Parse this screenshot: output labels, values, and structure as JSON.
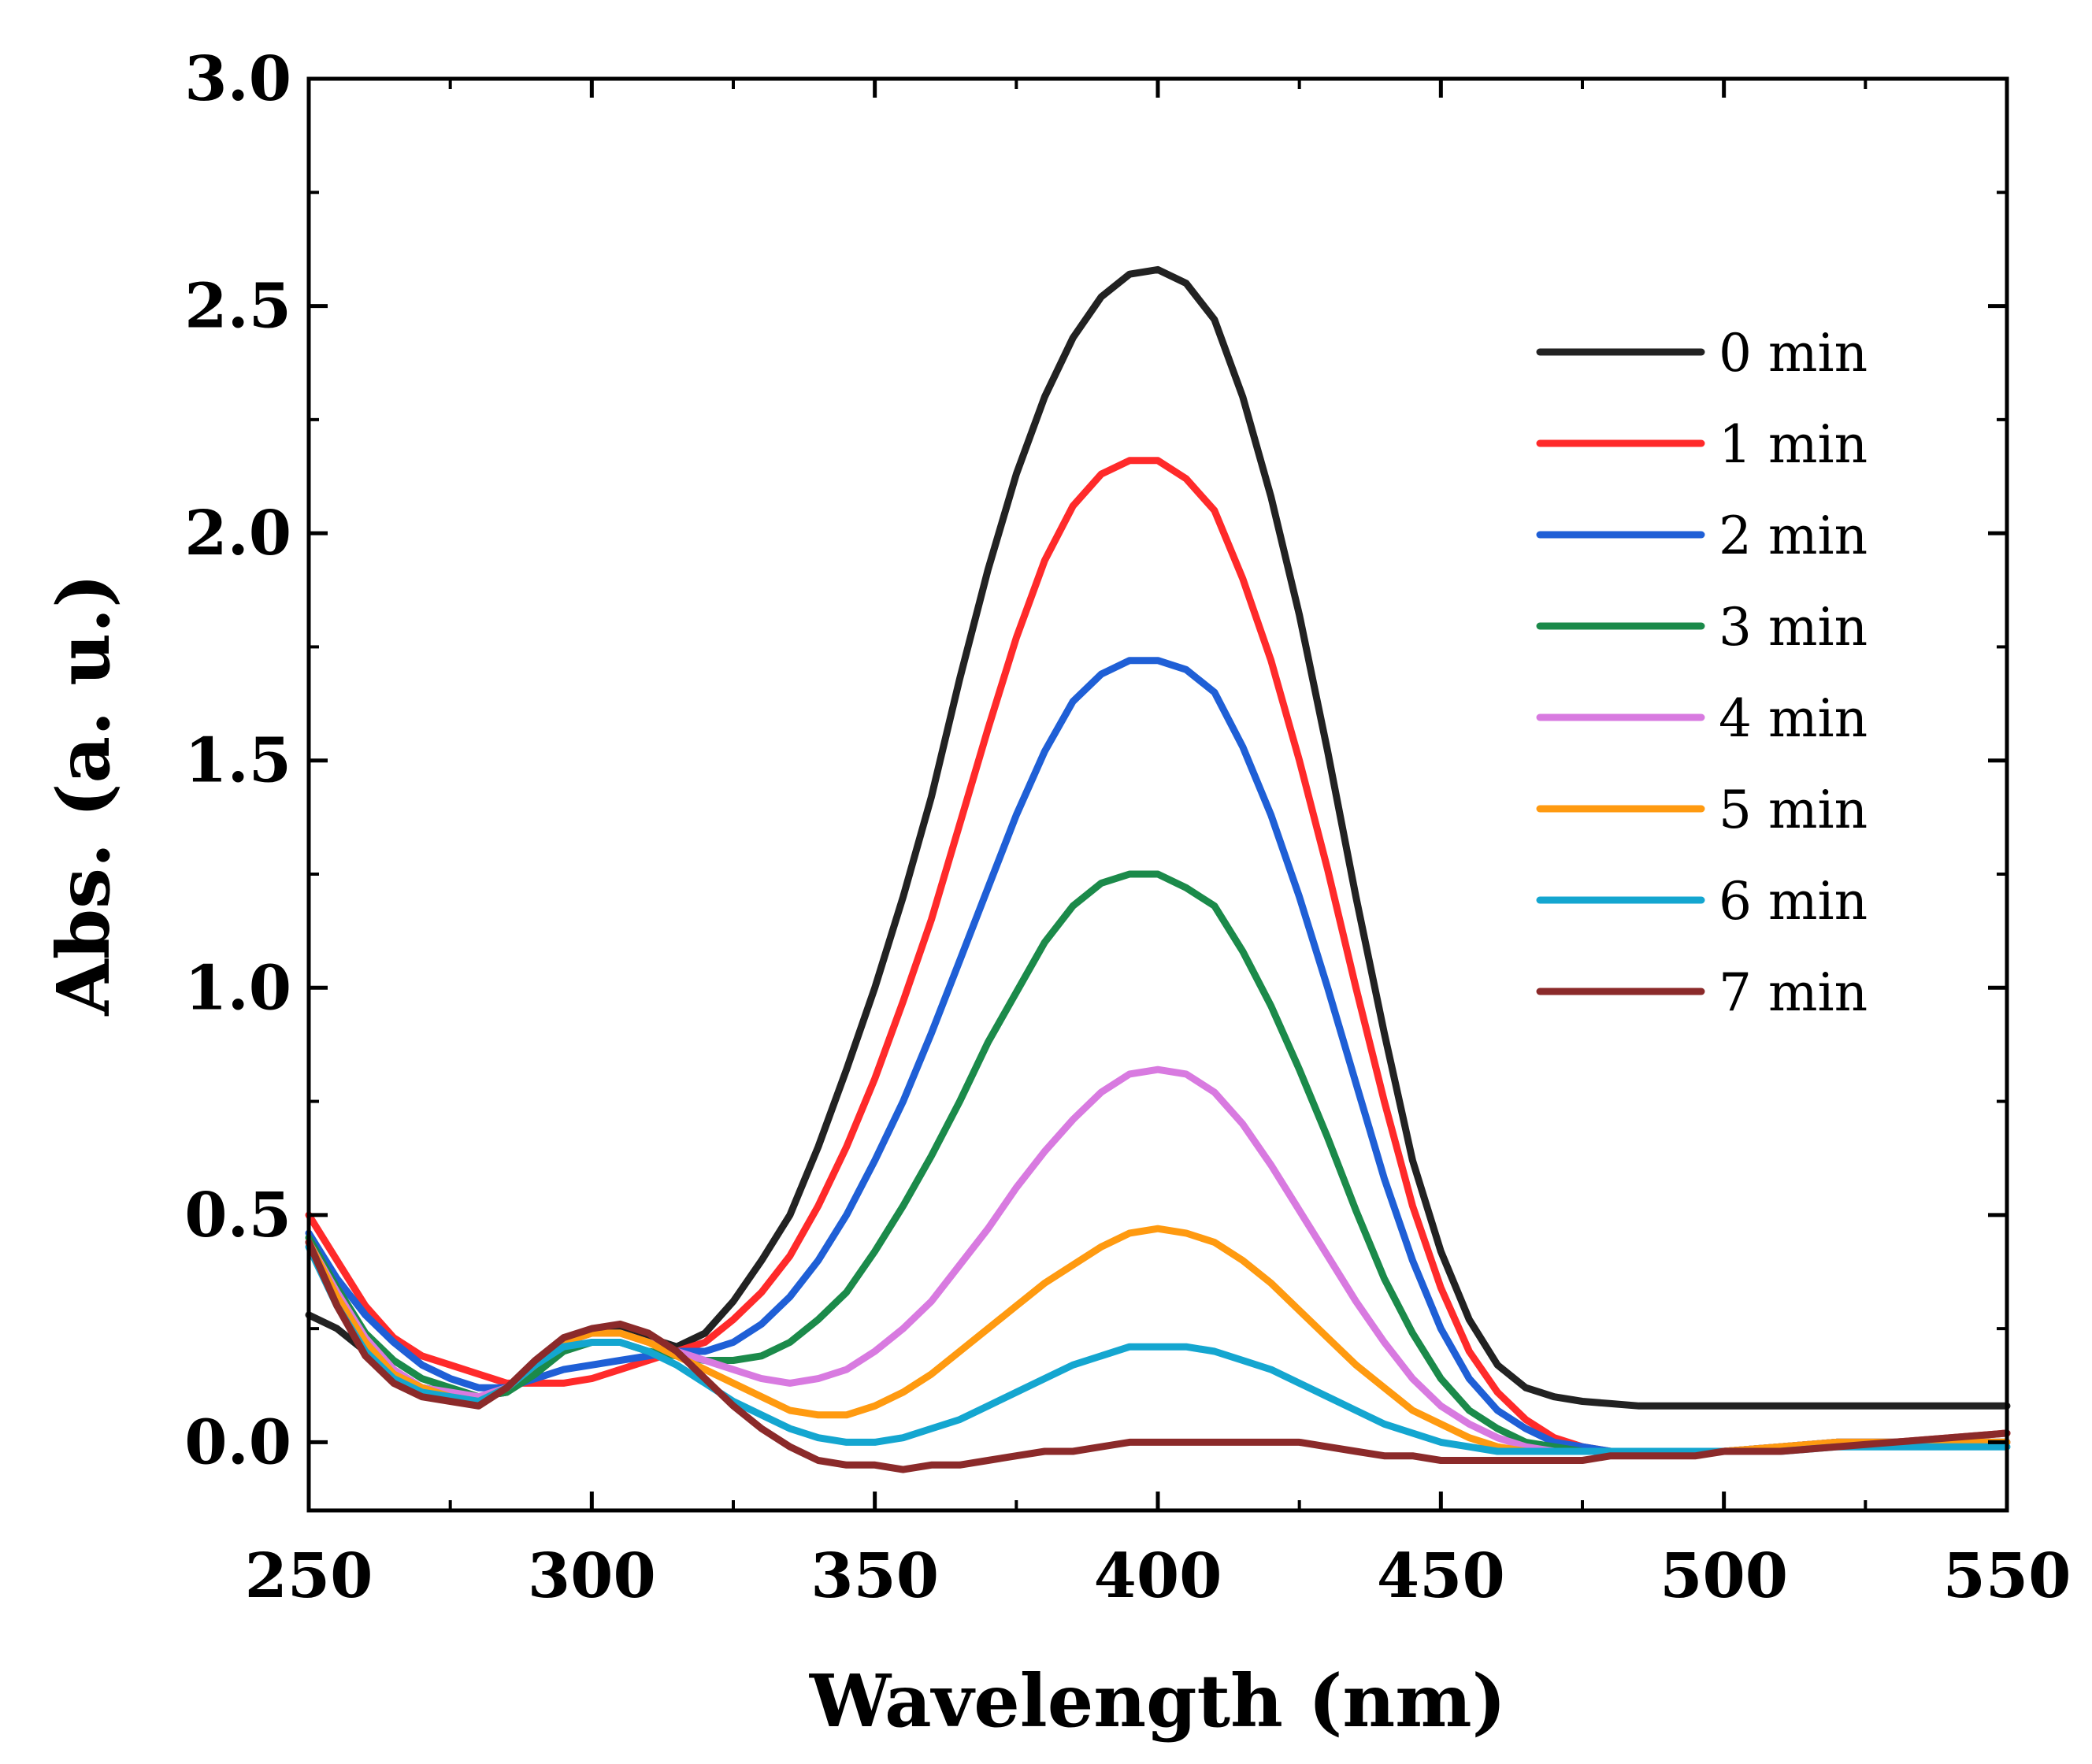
{
  "chart_data": {
    "type": "line",
    "title": "",
    "xlabel": "Wavelength (nm)",
    "ylabel": "Abs. (a. u.)",
    "xlim": [
      250,
      550
    ],
    "ylim": [
      -0.15,
      3.0
    ],
    "xticks": [
      "250",
      "300",
      "350",
      "400",
      "450",
      "500",
      "550"
    ],
    "xtick_values": [
      250,
      300,
      350,
      400,
      450,
      500,
      550
    ],
    "yticks": [
      "0.0",
      "0.5",
      "1.0",
      "1.5",
      "2.0",
      "2.5",
      "3.0"
    ],
    "ytick_values": [
      0.0,
      0.5,
      1.0,
      1.5,
      2.0,
      2.5,
      3.0
    ],
    "grid": false,
    "legend_position": "top-right",
    "x": [
      250,
      255,
      260,
      265,
      270,
      275,
      280,
      285,
      290,
      295,
      300,
      305,
      310,
      315,
      320,
      325,
      330,
      335,
      340,
      345,
      350,
      355,
      360,
      365,
      370,
      375,
      380,
      385,
      390,
      395,
      400,
      405,
      410,
      415,
      420,
      425,
      430,
      435,
      440,
      445,
      450,
      455,
      460,
      465,
      470,
      475,
      480,
      485,
      490,
      495,
      500,
      510,
      520,
      530,
      540,
      550
    ],
    "series": [
      {
        "name": "0 min",
        "color": "#222222",
        "values": [
          0.28,
          0.25,
          0.2,
          0.15,
          0.12,
          0.11,
          0.1,
          0.11,
          0.16,
          0.22,
          0.24,
          0.25,
          0.23,
          0.21,
          0.24,
          0.31,
          0.4,
          0.5,
          0.65,
          0.82,
          1.0,
          1.2,
          1.42,
          1.68,
          1.92,
          2.13,
          2.3,
          2.43,
          2.52,
          2.57,
          2.58,
          2.55,
          2.47,
          2.3,
          2.08,
          1.82,
          1.52,
          1.2,
          0.9,
          0.62,
          0.42,
          0.27,
          0.17,
          0.12,
          0.1,
          0.09,
          0.085,
          0.08,
          0.08,
          0.08,
          0.08,
          0.08,
          0.08,
          0.08,
          0.08,
          0.08
        ]
      },
      {
        "name": "1 min",
        "color": "#ff2a2a",
        "values": [
          0.5,
          0.4,
          0.3,
          0.23,
          0.19,
          0.17,
          0.15,
          0.13,
          0.13,
          0.13,
          0.14,
          0.16,
          0.18,
          0.2,
          0.22,
          0.27,
          0.33,
          0.41,
          0.52,
          0.65,
          0.8,
          0.97,
          1.15,
          1.36,
          1.57,
          1.77,
          1.94,
          2.06,
          2.13,
          2.16,
          2.16,
          2.12,
          2.05,
          1.9,
          1.72,
          1.5,
          1.26,
          1.0,
          0.75,
          0.52,
          0.34,
          0.2,
          0.11,
          0.05,
          0.01,
          -0.01,
          -0.02,
          -0.02,
          -0.02,
          -0.02,
          -0.02,
          -0.01,
          0.0,
          0.0,
          0.01,
          0.02
        ]
      },
      {
        "name": "2 min",
        "color": "#1f5fd6",
        "values": [
          0.46,
          0.36,
          0.28,
          0.22,
          0.17,
          0.14,
          0.12,
          0.12,
          0.14,
          0.16,
          0.17,
          0.18,
          0.19,
          0.2,
          0.2,
          0.22,
          0.26,
          0.32,
          0.4,
          0.5,
          0.62,
          0.75,
          0.9,
          1.06,
          1.22,
          1.38,
          1.52,
          1.63,
          1.69,
          1.72,
          1.72,
          1.7,
          1.65,
          1.53,
          1.38,
          1.2,
          1.0,
          0.79,
          0.58,
          0.4,
          0.25,
          0.14,
          0.07,
          0.03,
          0.0,
          -0.01,
          -0.02,
          -0.02,
          -0.02,
          -0.02,
          -0.02,
          -0.01,
          0.0,
          0.0,
          0.0,
          0.0
        ]
      },
      {
        "name": "3 min",
        "color": "#1b8a4a",
        "values": [
          0.45,
          0.34,
          0.24,
          0.18,
          0.14,
          0.12,
          0.1,
          0.11,
          0.15,
          0.2,
          0.22,
          0.22,
          0.2,
          0.19,
          0.18,
          0.18,
          0.19,
          0.22,
          0.27,
          0.33,
          0.42,
          0.52,
          0.63,
          0.75,
          0.88,
          0.99,
          1.1,
          1.18,
          1.23,
          1.25,
          1.25,
          1.22,
          1.18,
          1.08,
          0.96,
          0.82,
          0.67,
          0.51,
          0.36,
          0.24,
          0.14,
          0.07,
          0.03,
          0.0,
          -0.01,
          -0.02,
          -0.02,
          -0.02,
          -0.02,
          -0.02,
          -0.02,
          -0.01,
          0.0,
          0.0,
          0.0,
          0.0
        ]
      },
      {
        "name": "4 min",
        "color": "#d87ae0",
        "values": [
          0.44,
          0.33,
          0.23,
          0.16,
          0.12,
          0.11,
          0.1,
          0.12,
          0.17,
          0.22,
          0.24,
          0.24,
          0.22,
          0.2,
          0.18,
          0.16,
          0.14,
          0.13,
          0.14,
          0.16,
          0.2,
          0.25,
          0.31,
          0.39,
          0.47,
          0.56,
          0.64,
          0.71,
          0.77,
          0.81,
          0.82,
          0.81,
          0.77,
          0.7,
          0.61,
          0.51,
          0.41,
          0.31,
          0.22,
          0.14,
          0.08,
          0.04,
          0.01,
          -0.01,
          -0.02,
          -0.02,
          -0.02,
          -0.02,
          -0.02,
          -0.02,
          -0.02,
          -0.01,
          0.0,
          0.0,
          0.0,
          0.0
        ]
      },
      {
        "name": "5 min",
        "color": "#ff9a10",
        "values": [
          0.44,
          0.32,
          0.22,
          0.15,
          0.12,
          0.1,
          0.09,
          0.12,
          0.17,
          0.22,
          0.24,
          0.24,
          0.22,
          0.19,
          0.16,
          0.13,
          0.1,
          0.07,
          0.06,
          0.06,
          0.08,
          0.11,
          0.15,
          0.2,
          0.25,
          0.3,
          0.35,
          0.39,
          0.43,
          0.46,
          0.47,
          0.46,
          0.44,
          0.4,
          0.35,
          0.29,
          0.23,
          0.17,
          0.12,
          0.07,
          0.04,
          0.01,
          -0.01,
          -0.02,
          -0.02,
          -0.02,
          -0.02,
          -0.02,
          -0.02,
          -0.02,
          -0.02,
          -0.01,
          0.0,
          0.0,
          0.0,
          0.0
        ]
      },
      {
        "name": "6 min",
        "color": "#14a6d0",
        "values": [
          0.43,
          0.3,
          0.2,
          0.14,
          0.11,
          0.1,
          0.09,
          0.12,
          0.17,
          0.21,
          0.22,
          0.22,
          0.2,
          0.17,
          0.13,
          0.09,
          0.06,
          0.03,
          0.01,
          0.0,
          0.0,
          0.01,
          0.03,
          0.05,
          0.08,
          0.11,
          0.14,
          0.17,
          0.19,
          0.21,
          0.21,
          0.21,
          0.2,
          0.18,
          0.16,
          0.13,
          0.1,
          0.07,
          0.04,
          0.02,
          0.0,
          -0.01,
          -0.02,
          -0.02,
          -0.02,
          -0.02,
          -0.02,
          -0.02,
          -0.02,
          -0.02,
          -0.02,
          -0.02,
          -0.01,
          -0.01,
          -0.01,
          -0.01
        ]
      },
      {
        "name": "7 min",
        "color": "#8b2a2a",
        "values": [
          0.44,
          0.3,
          0.19,
          0.13,
          0.1,
          0.09,
          0.08,
          0.12,
          0.18,
          0.23,
          0.25,
          0.26,
          0.24,
          0.2,
          0.14,
          0.08,
          0.03,
          -0.01,
          -0.04,
          -0.05,
          -0.05,
          -0.06,
          -0.05,
          -0.05,
          -0.04,
          -0.03,
          -0.02,
          -0.02,
          -0.01,
          0.0,
          0.0,
          0.0,
          0.0,
          0.0,
          0.0,
          0.0,
          -0.01,
          -0.02,
          -0.03,
          -0.03,
          -0.04,
          -0.04,
          -0.04,
          -0.04,
          -0.04,
          -0.04,
          -0.03,
          -0.03,
          -0.03,
          -0.03,
          -0.02,
          -0.02,
          -0.01,
          0.0,
          0.01,
          0.02
        ]
      }
    ]
  }
}
